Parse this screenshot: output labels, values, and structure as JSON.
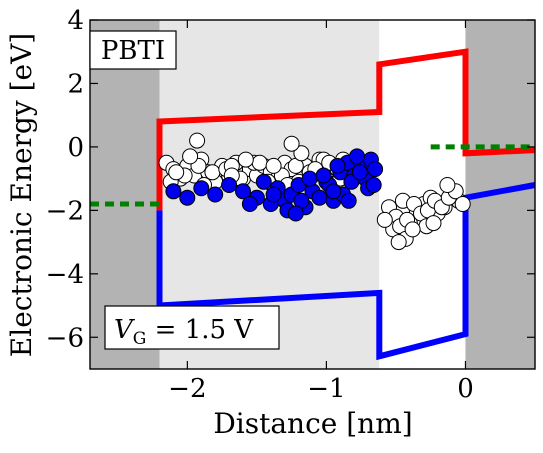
{
  "chart_data": {
    "type": "scatter",
    "xlabel": "Distance [nm]",
    "ylabel": "Electronic Energy [eV]",
    "xlim": [
      -2.7,
      0.5
    ],
    "ylim": [
      -7,
      4
    ],
    "xticks": [
      -2,
      -1,
      0
    ],
    "yticks": [
      -6,
      -4,
      -2,
      0,
      2,
      4
    ],
    "xtick_labels": [
      "−2",
      "−1",
      "0"
    ],
    "ytick_labels": [
      "−6",
      "−4",
      "−2",
      "0",
      "2",
      "4"
    ],
    "grid": false,
    "annotations": {
      "top_left": "PBTI",
      "bottom_left": "V_G = 1.5 V"
    },
    "regions": [
      {
        "name": "left-electrode",
        "x": [
          -2.7,
          -2.2
        ],
        "color": "#b3b3b3"
      },
      {
        "name": "interlayer",
        "x": [
          -2.2,
          -0.62
        ],
        "color": "#e6e6e6"
      },
      {
        "name": "high-k",
        "x": [
          -0.62,
          0.0
        ],
        "color": "#ffffff"
      },
      {
        "name": "right-electrode",
        "x": [
          0.0,
          0.5
        ],
        "color": "#b3b3b3"
      }
    ],
    "lines": [
      {
        "name": "conduction-band",
        "color": "#ff0000",
        "points": [
          [
            -2.2,
            -2.0
          ],
          [
            -2.2,
            0.8
          ],
          [
            -0.62,
            1.1
          ],
          [
            -0.62,
            2.6
          ],
          [
            0.0,
            3.0
          ],
          [
            0.0,
            -0.2
          ],
          [
            0.5,
            -0.1
          ]
        ]
      },
      {
        "name": "valence-band",
        "color": "#0000ff",
        "points": [
          [
            -2.2,
            -2.0
          ],
          [
            -2.2,
            -5.0
          ],
          [
            -0.62,
            -4.6
          ],
          [
            -0.62,
            -6.6
          ],
          [
            0.0,
            -5.9
          ],
          [
            0.0,
            -1.6
          ],
          [
            0.5,
            -1.2
          ]
        ]
      },
      {
        "name": "fermi-level-left",
        "color": "#008000",
        "dashed": true,
        "points": [
          [
            -2.7,
            -1.8
          ],
          [
            -2.2,
            -1.8
          ]
        ]
      },
      {
        "name": "fermi-level-right",
        "color": "#008000",
        "dashed": true,
        "points": [
          [
            -0.25,
            0.0
          ],
          [
            0.5,
            0.0
          ]
        ]
      }
    ],
    "series": [
      {
        "marker_color": "#ffffff",
        "x": [
          -2.15,
          -2.1,
          -2.05,
          -2.0,
          -1.95,
          -1.9,
          -1.85,
          -1.8,
          -1.75,
          -1.7,
          -1.65,
          -1.6,
          -1.55,
          -1.5,
          -1.45,
          -1.4,
          -1.35,
          -1.3,
          -1.25,
          -1.2,
          -1.15,
          -1.1,
          -1.05,
          -1.0,
          -0.95,
          -0.9,
          -0.85,
          -0.8,
          -0.75,
          -0.7,
          -2.12,
          -2.02,
          -1.92,
          -1.82,
          -1.72,
          -1.62,
          -1.52,
          -1.42,
          -1.32,
          -1.22,
          -1.12,
          -1.02,
          -0.92,
          -0.82,
          -0.72,
          -2.08,
          -1.88,
          -1.68,
          -1.48,
          -1.28,
          -1.08,
          -0.88,
          -1.98,
          -1.58,
          -1.18,
          -1.93,
          -1.38,
          -0.98,
          -1.68,
          -1.25,
          -0.55,
          -0.5,
          -0.45,
          -0.4,
          -0.35,
          -0.3,
          -0.25,
          -0.2,
          -0.15,
          -0.1,
          -0.05,
          -0.52,
          -0.47,
          -0.42,
          -0.37,
          -0.32,
          -0.27,
          -0.22,
          -0.17,
          -0.12,
          -0.07,
          -0.58,
          -0.43,
          -0.28,
          -0.13,
          -0.02,
          -0.38,
          -0.23,
          -0.48
        ],
        "y": [
          -0.5,
          -0.7,
          -1.0,
          -0.6,
          -0.9,
          -0.4,
          -0.8,
          -1.1,
          -0.6,
          -0.9,
          -0.5,
          -1.0,
          -0.7,
          -0.9,
          -0.6,
          -0.8,
          -1.0,
          -0.5,
          -0.7,
          -1.1,
          -0.6,
          -0.9,
          -0.4,
          -0.8,
          -0.6,
          -1.0,
          -0.5,
          -0.9,
          -0.7,
          -0.8,
          -1.1,
          -0.9,
          -0.6,
          -0.8,
          -0.7,
          -1.0,
          -0.5,
          -1.1,
          -0.9,
          -0.6,
          -0.8,
          -0.4,
          -0.7,
          -1.0,
          -0.9,
          -0.8,
          -1.2,
          -0.6,
          -0.5,
          -1.2,
          -0.7,
          -0.4,
          -0.3,
          -0.4,
          -0.2,
          0.2,
          -0.6,
          -0.5,
          -0.9,
          0.1,
          -1.9,
          -2.2,
          -1.7,
          -2.4,
          -2.0,
          -1.8,
          -1.6,
          -2.1,
          -1.9,
          -1.5,
          -1.7,
          -2.6,
          -2.5,
          -2.3,
          -1.8,
          -2.1,
          -2.0,
          -1.7,
          -1.9,
          -1.6,
          -1.4,
          -2.3,
          -2.9,
          -2.5,
          -1.2,
          -1.8,
          -2.6,
          -2.4,
          -3.0
        ]
      },
      {
        "marker_color": "#0000ee",
        "x": [
          -2.1,
          -2.0,
          -1.9,
          -1.8,
          -1.7,
          -1.6,
          -1.5,
          -1.45,
          -1.4,
          -1.35,
          -1.3,
          -1.25,
          -1.2,
          -1.15,
          -1.1,
          -1.05,
          -1.0,
          -0.95,
          -0.9,
          -0.85,
          -0.8,
          -0.75,
          -0.72,
          -0.68,
          -0.65,
          -1.55,
          -1.28,
          -1.12,
          -0.98,
          -0.88,
          -0.78,
          -0.7,
          -1.38,
          -1.18,
          -1.02,
          -0.92,
          -0.82,
          -0.76,
          -0.66,
          -1.22,
          -0.95,
          -0.84
        ],
        "y": [
          -1.4,
          -1.6,
          -1.3,
          -1.5,
          -1.2,
          -1.4,
          -1.6,
          -1.1,
          -1.8,
          -1.3,
          -1.7,
          -1.5,
          -1.2,
          -1.9,
          -1.4,
          -1.6,
          -1.1,
          -1.7,
          -0.8,
          -0.5,
          -0.9,
          -0.6,
          -1.0,
          -0.4,
          -0.7,
          -1.8,
          -2.0,
          -1.0,
          -1.2,
          -1.5,
          -0.3,
          -1.3,
          -1.5,
          -1.7,
          -0.9,
          -0.6,
          -1.1,
          -0.8,
          -1.2,
          -2.1,
          -1.4,
          -1.7
        ]
      }
    ]
  }
}
